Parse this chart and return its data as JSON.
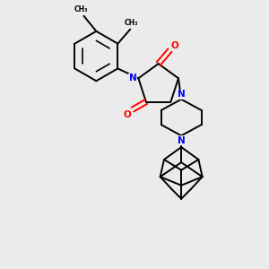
{
  "background_color": "#ebebeb",
  "bond_color": "#000000",
  "nitrogen_color": "#0000ff",
  "oxygen_color": "#ff0000",
  "line_width": 1.4,
  "dbo": 0.025,
  "figsize": [
    3.0,
    3.0
  ],
  "dpi": 100,
  "xlim": [
    0.3,
    2.7
  ],
  "ylim": [
    0.1,
    2.9
  ]
}
